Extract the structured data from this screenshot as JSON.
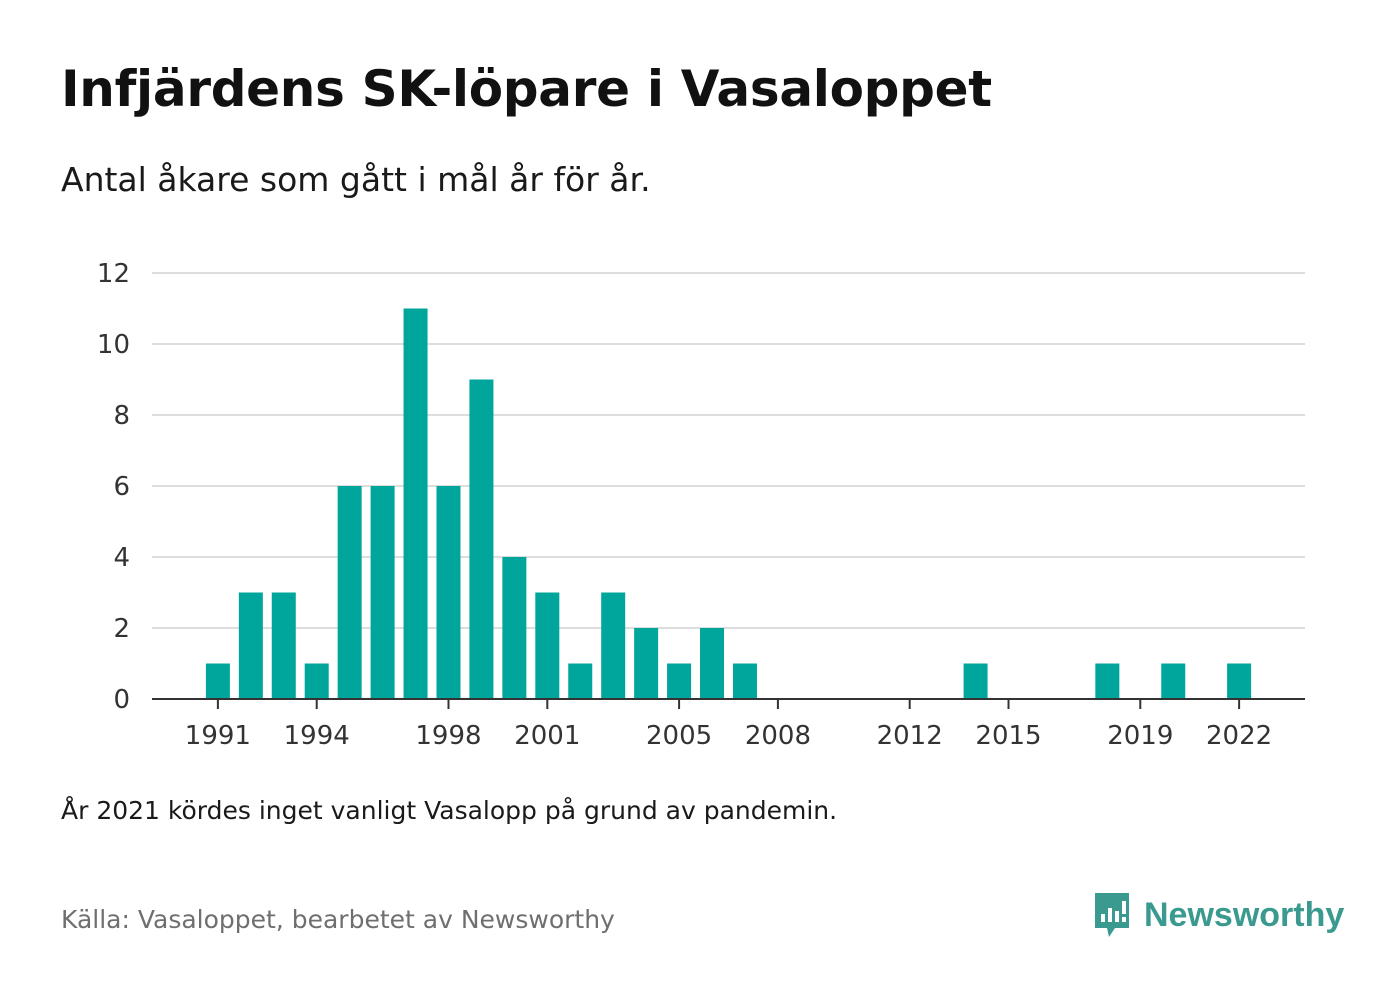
{
  "header": {
    "title": "Infjärdens SK-löpare i Vasaloppet",
    "subtitle": "Antal åkare som gått i mål år för år."
  },
  "footer": {
    "note": "År 2021 kördes inget vanligt Vasalopp på grund av pandemin.",
    "source": "Källa: Vasaloppet, bearbetet av Newsworthy",
    "brand": "Newsworthy",
    "brand_icon": "newsworthy-logo-icon"
  },
  "colors": {
    "bar": "#00a59b",
    "grid": "#dddddd",
    "axis": "#333333",
    "brand": "#3a9a8f"
  },
  "chart_data": {
    "type": "bar",
    "title": "Infjärdens SK-löpare i Vasaloppet",
    "subtitle": "Antal åkare som gått i mål år för år.",
    "xlabel": "",
    "ylabel": "",
    "ylim": [
      0,
      12
    ],
    "xlim": [
      1989,
      2024
    ],
    "yticks": [
      0,
      2,
      4,
      6,
      8,
      10,
      12
    ],
    "xticks": [
      1991,
      1994,
      1998,
      2001,
      2005,
      2008,
      2012,
      2015,
      2019,
      2022
    ],
    "grid": true,
    "x": [
      1991,
      1992,
      1993,
      1994,
      1995,
      1996,
      1997,
      1998,
      1999,
      2000,
      2001,
      2002,
      2003,
      2004,
      2005,
      2006,
      2007,
      2014,
      2018,
      2020,
      2022
    ],
    "values": [
      1,
      3,
      3,
      1,
      6,
      6,
      11,
      6,
      9,
      4,
      3,
      1,
      3,
      2,
      1,
      2,
      1,
      1,
      1,
      1,
      1
    ]
  }
}
